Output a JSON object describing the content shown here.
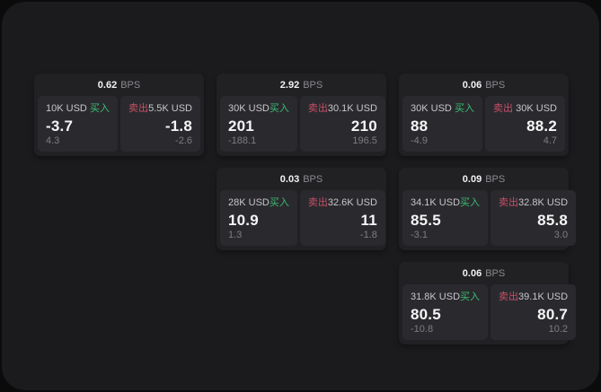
{
  "colors": {
    "buy_green": "#3cbd74",
    "sell_red": "#c94e66",
    "window_bg": "#1b1b1d",
    "card_bg": "#212124",
    "panel_bg": "#2a2a2e"
  },
  "cards": [
    {
      "bps": "0.62",
      "bps_unit": "BPS",
      "buy": {
        "amount": "10K USD",
        "label": "买入",
        "value": "-3.7",
        "delta": "4.3"
      },
      "sell": {
        "label": "卖出",
        "amount": "5.5K USD",
        "value": "-1.8",
        "delta": "-2.6"
      }
    },
    {
      "bps": "2.92",
      "bps_unit": "BPS",
      "buy": {
        "amount": "30K USD",
        "label": "买入",
        "value": "201",
        "delta": "-188.1"
      },
      "sell": {
        "label": "卖出",
        "amount": "30.1K USD",
        "value": "210",
        "delta": "196.5"
      }
    },
    {
      "bps": "0.06",
      "bps_unit": "BPS",
      "buy": {
        "amount": "30K USD",
        "label": "买入",
        "value": "88",
        "delta": "-4.9"
      },
      "sell": {
        "label": "卖出",
        "amount": "30K USD",
        "value": "88.2",
        "delta": "4.7"
      }
    },
    {
      "bps": "0.03",
      "bps_unit": "BPS",
      "buy": {
        "amount": "28K USD",
        "label": "买入",
        "value": "10.9",
        "delta": "1.3"
      },
      "sell": {
        "label": "卖出",
        "amount": "32.6K USD",
        "value": "11",
        "delta": "-1.8"
      }
    },
    {
      "bps": "0.09",
      "bps_unit": "BPS",
      "buy": {
        "amount": "34.1K USD",
        "label": "买入",
        "value": "85.5",
        "delta": "-3.1"
      },
      "sell": {
        "label": "卖出",
        "amount": "32.8K USD",
        "value": "85.8",
        "delta": "3.0"
      }
    },
    {
      "bps": "0.06",
      "bps_unit": "BPS",
      "buy": {
        "amount": "31.8K USD",
        "label": "买入",
        "value": "80.5",
        "delta": "-10.8"
      },
      "sell": {
        "label": "卖出",
        "amount": "39.1K USD",
        "value": "80.7",
        "delta": "10.2"
      }
    }
  ]
}
